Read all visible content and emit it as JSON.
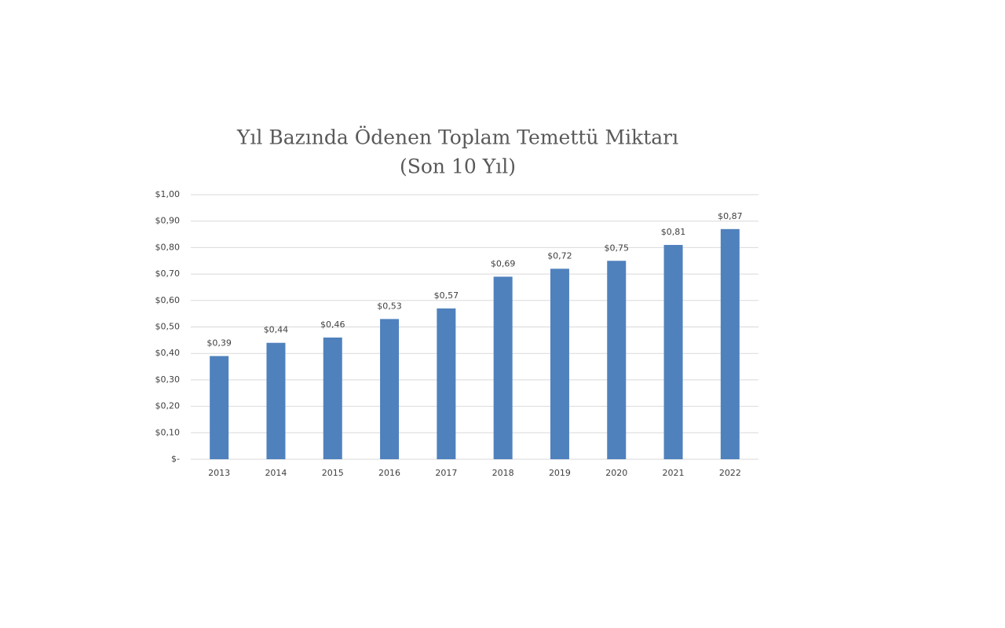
{
  "chart_data": {
    "type": "bar",
    "title": "Yıl Bazında Ödenen Toplam Temettü Miktarı",
    "subtitle": "(Son 10 Yıl)",
    "categories": [
      "2013",
      "2014",
      "2015",
      "2016",
      "2017",
      "2018",
      "2019",
      "2020",
      "2021",
      "2022"
    ],
    "values": [
      0.39,
      0.44,
      0.46,
      0.53,
      0.57,
      0.69,
      0.72,
      0.75,
      0.81,
      0.87
    ],
    "value_labels": [
      "$0,39",
      "$0,44",
      "$0,46",
      "$0,53",
      "$0,57",
      "$0,69",
      "$0,72",
      "$0,75",
      "$0,81",
      "$0,87"
    ],
    "color": "#4f81bd",
    "ylim": [
      0,
      1
    ],
    "yticks": [
      {
        "value": 0,
        "label": "$-"
      },
      {
        "value": 0.1,
        "label": "$0,10"
      },
      {
        "value": 0.2,
        "label": "$0,20"
      },
      {
        "value": 0.3,
        "label": "$0,30"
      },
      {
        "value": 0.4,
        "label": "$0,40"
      },
      {
        "value": 0.5,
        "label": "$0,50"
      },
      {
        "value": 0.6,
        "label": "$0,60"
      },
      {
        "value": 0.7,
        "label": "$0,70"
      },
      {
        "value": 0.8,
        "label": "$0,80"
      },
      {
        "value": 0.9,
        "label": "$0,90"
      },
      {
        "value": 1,
        "label": "$1,00"
      }
    ],
    "grid": true
  }
}
